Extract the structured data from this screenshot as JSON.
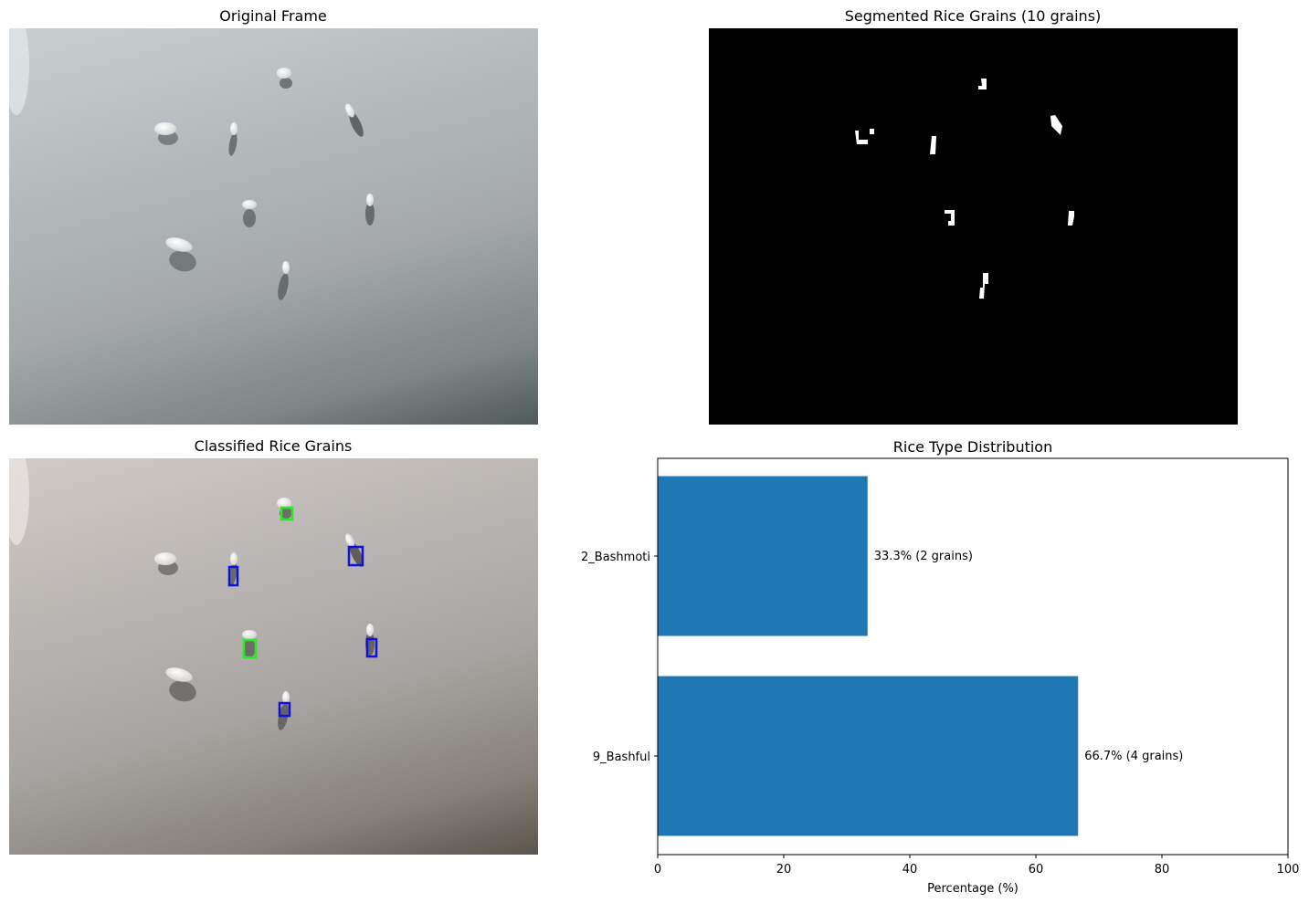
{
  "panels": {
    "original": {
      "title": "Original Frame"
    },
    "segmented": {
      "title": "Segmented Rice Grains (10 grains)"
    },
    "classified": {
      "title": "Classified Rice Grains"
    }
  },
  "colors": {
    "bar": "#1f77b4",
    "box_green": "#22ee22",
    "box_blue": "#1010dd"
  },
  "chart_data": {
    "type": "bar",
    "orientation": "horizontal",
    "title": "Rice Type Distribution",
    "xlabel": "Percentage (%)",
    "ylabel": "",
    "xlim": [
      0,
      100
    ],
    "xticks": [
      0,
      20,
      40,
      60,
      80,
      100
    ],
    "categories": [
      "9_Bashful",
      "2_Bashmoti"
    ],
    "values": [
      66.7,
      33.3
    ],
    "labels": [
      "66.7% (4 grains)",
      "33.3% (2 grains)"
    ]
  }
}
